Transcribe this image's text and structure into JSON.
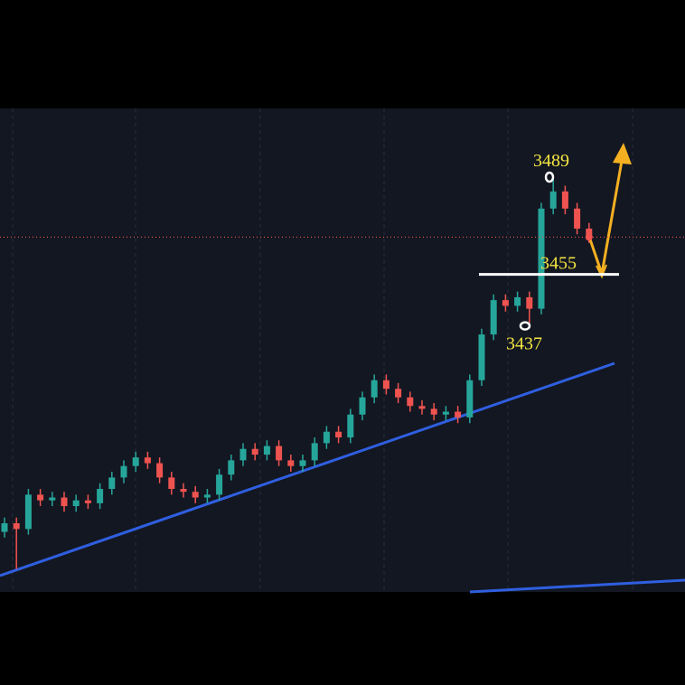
{
  "chart_data": {
    "type": "candlestick",
    "open": [
      3365,
      3368,
      3366,
      3378,
      3376,
      3377,
      3374,
      3376,
      3375,
      3380,
      3384,
      3388,
      3391,
      3389,
      3384,
      3380,
      3379,
      3377,
      3378,
      3385,
      3390,
      3394,
      3392,
      3395,
      3390,
      3388,
      3390,
      3396,
      3400,
      3398,
      3406,
      3412,
      3418,
      3415,
      3412,
      3409,
      3408,
      3406,
      3407,
      3405,
      3418,
      3434,
      3446,
      3444,
      3447,
      3443,
      3478,
      3484,
      3478,
      3471
    ],
    "high": [
      3370,
      3370,
      3380,
      3380,
      3379,
      3379,
      3378,
      3378,
      3382,
      3386,
      3390,
      3393,
      3393,
      3391,
      3386,
      3382,
      3381,
      3380,
      3387,
      3392,
      3396,
      3396,
      3397,
      3397,
      3392,
      3392,
      3398,
      3402,
      3402,
      3408,
      3414,
      3420,
      3420,
      3417,
      3414,
      3411,
      3410,
      3409,
      3409,
      3420,
      3436,
      3448,
      3448,
      3449,
      3449,
      3480,
      3489,
      3486,
      3480,
      3473
    ],
    "low": [
      3363,
      3352,
      3364,
      3374,
      3374,
      3372,
      3372,
      3373,
      3373,
      3378,
      3382,
      3386,
      3387,
      3382,
      3378,
      3377,
      3375,
      3375,
      3376,
      3383,
      3388,
      3390,
      3390,
      3388,
      3386,
      3386,
      3388,
      3394,
      3396,
      3396,
      3404,
      3410,
      3413,
      3410,
      3407,
      3406,
      3404,
      3404,
      3403,
      3403,
      3416,
      3432,
      3442,
      3442,
      3437,
      3441,
      3476,
      3476,
      3469,
      3466
    ],
    "close": [
      3368,
      3366,
      3378,
      3376,
      3377,
      3374,
      3376,
      3375,
      3380,
      3384,
      3388,
      3391,
      3389,
      3384,
      3380,
      3379,
      3377,
      3378,
      3385,
      3390,
      3394,
      3392,
      3395,
      3390,
      3388,
      3390,
      3396,
      3400,
      3398,
      3406,
      3412,
      3418,
      3415,
      3412,
      3409,
      3408,
      3406,
      3407,
      3405,
      3418,
      3434,
      3446,
      3444,
      3447,
      3443,
      3478,
      3484,
      3478,
      3471,
      3468
    ],
    "up_color": "#26a69a",
    "down_color": "#ef5350",
    "ylim": [
      3344,
      3513
    ],
    "annotations": [
      3489,
      3455,
      3437
    ]
  }
}
